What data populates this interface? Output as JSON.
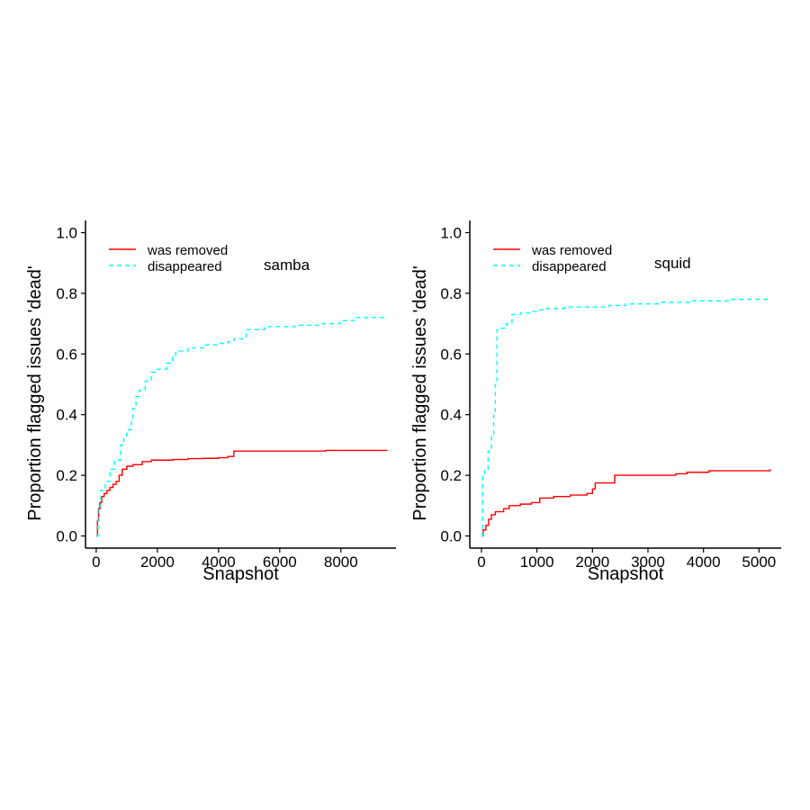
{
  "chart_data": [
    {
      "type": "line",
      "annotation": "samba",
      "xlabel": "Snapshot",
      "ylabel": "Proportion flagged issues 'dead'",
      "xlim": [
        -350,
        9800
      ],
      "ylim": [
        -0.04,
        1.04
      ],
      "xticks": [
        0,
        2000,
        4000,
        6000,
        8000
      ],
      "yticks": [
        0.0,
        0.2,
        0.4,
        0.6,
        0.8,
        1.0
      ],
      "legend": "top-left",
      "series": [
        {
          "name": "was removed",
          "color": "#ff0000",
          "dash": "solid",
          "points": [
            [
              0,
              0.0
            ],
            [
              40,
              0.05
            ],
            [
              80,
              0.09
            ],
            [
              120,
              0.11
            ],
            [
              180,
              0.13
            ],
            [
              260,
              0.14
            ],
            [
              350,
              0.15
            ],
            [
              450,
              0.16
            ],
            [
              550,
              0.17
            ],
            [
              650,
              0.18
            ],
            [
              750,
              0.2
            ],
            [
              850,
              0.22
            ],
            [
              1000,
              0.23
            ],
            [
              1200,
              0.235
            ],
            [
              1500,
              0.245
            ],
            [
              1800,
              0.25
            ],
            [
              2500,
              0.252
            ],
            [
              3000,
              0.255
            ],
            [
              3500,
              0.256
            ],
            [
              4000,
              0.258
            ],
            [
              4300,
              0.262
            ],
            [
              4500,
              0.28
            ],
            [
              6000,
              0.28
            ],
            [
              7500,
              0.282
            ],
            [
              9500,
              0.283
            ]
          ]
        },
        {
          "name": "disappeared",
          "color": "#00ffff",
          "dash": "dashed",
          "points": [
            [
              0,
              0.0
            ],
            [
              60,
              0.1
            ],
            [
              150,
              0.15
            ],
            [
              300,
              0.18
            ],
            [
              450,
              0.22
            ],
            [
              600,
              0.25
            ],
            [
              800,
              0.3
            ],
            [
              900,
              0.33
            ],
            [
              1000,
              0.35
            ],
            [
              1150,
              0.38
            ],
            [
              1200,
              0.42
            ],
            [
              1300,
              0.46
            ],
            [
              1400,
              0.48
            ],
            [
              1600,
              0.51
            ],
            [
              1800,
              0.54
            ],
            [
              2000,
              0.55
            ],
            [
              2300,
              0.57
            ],
            [
              2500,
              0.59
            ],
            [
              2600,
              0.61
            ],
            [
              3000,
              0.62
            ],
            [
              3500,
              0.63
            ],
            [
              4000,
              0.635
            ],
            [
              4300,
              0.64
            ],
            [
              4500,
              0.65
            ],
            [
              4900,
              0.68
            ],
            [
              5500,
              0.69
            ],
            [
              6500,
              0.695
            ],
            [
              7300,
              0.7
            ],
            [
              8000,
              0.71
            ],
            [
              8500,
              0.72
            ],
            [
              9500,
              0.72
            ]
          ]
        }
      ]
    },
    {
      "type": "line",
      "annotation": "squid",
      "xlabel": "Snapshot",
      "ylabel": "Proportion flagged issues 'dead'",
      "xlim": [
        -210,
        5400
      ],
      "ylim": [
        -0.04,
        1.04
      ],
      "xticks": [
        0,
        1000,
        2000,
        3000,
        4000,
        5000
      ],
      "yticks": [
        0.0,
        0.2,
        0.4,
        0.6,
        0.8,
        1.0
      ],
      "legend": "top-left",
      "series": [
        {
          "name": "was removed",
          "color": "#ff0000",
          "dash": "solid",
          "points": [
            [
              0,
              0.0
            ],
            [
              30,
              0.02
            ],
            [
              80,
              0.035
            ],
            [
              130,
              0.055
            ],
            [
              180,
              0.07
            ],
            [
              250,
              0.08
            ],
            [
              400,
              0.09
            ],
            [
              500,
              0.1
            ],
            [
              700,
              0.105
            ],
            [
              900,
              0.11
            ],
            [
              1050,
              0.125
            ],
            [
              1300,
              0.13
            ],
            [
              1600,
              0.135
            ],
            [
              1900,
              0.14
            ],
            [
              2000,
              0.155
            ],
            [
              2050,
              0.175
            ],
            [
              2400,
              0.175
            ],
            [
              2400,
              0.2
            ],
            [
              3000,
              0.2
            ],
            [
              3500,
              0.205
            ],
            [
              3700,
              0.21
            ],
            [
              4100,
              0.215
            ],
            [
              4500,
              0.215
            ],
            [
              5000,
              0.215
            ],
            [
              5200,
              0.22
            ]
          ]
        },
        {
          "name": "disappeared",
          "color": "#00ffff",
          "dash": "dashed",
          "points": [
            [
              0,
              0.0
            ],
            [
              20,
              0.2
            ],
            [
              60,
              0.22
            ],
            [
              120,
              0.28
            ],
            [
              180,
              0.33
            ],
            [
              220,
              0.4
            ],
            [
              250,
              0.5
            ],
            [
              280,
              0.68
            ],
            [
              350,
              0.685
            ],
            [
              450,
              0.7
            ],
            [
              550,
              0.73
            ],
            [
              700,
              0.735
            ],
            [
              900,
              0.74
            ],
            [
              1000,
              0.745
            ],
            [
              1100,
              0.75
            ],
            [
              1500,
              0.755
            ],
            [
              2100,
              0.755
            ],
            [
              2300,
              0.76
            ],
            [
              2600,
              0.765
            ],
            [
              3200,
              0.77
            ],
            [
              3800,
              0.775
            ],
            [
              4500,
              0.78
            ],
            [
              5200,
              0.78
            ]
          ]
        }
      ]
    }
  ]
}
